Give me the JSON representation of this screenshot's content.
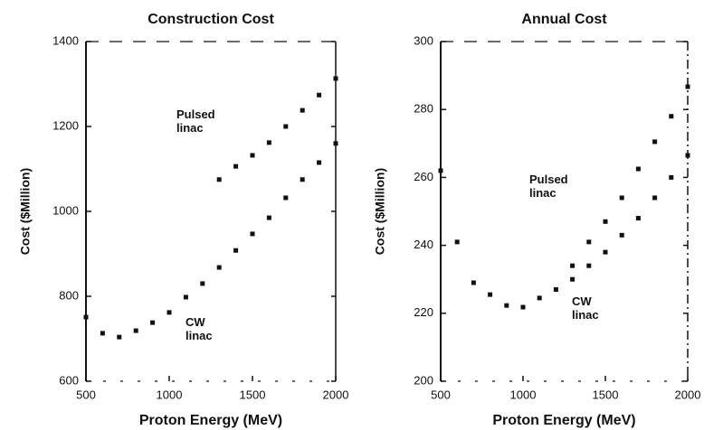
{
  "chart_data": [
    {
      "type": "scatter",
      "title": "Construction Cost",
      "xlabel": "Proton Energy (MeV)",
      "ylabel": "Cost ($Million)",
      "xlim": [
        500,
        2000
      ],
      "xticks": [
        500,
        1000,
        1500,
        2000
      ],
      "ylim": [
        600,
        1400
      ],
      "yticks": [
        600,
        800,
        1000,
        1200,
        1400
      ],
      "series": [
        {
          "name": "Pulsed linac",
          "color": "#111111",
          "x": [
            1300,
            1400,
            1500,
            1600,
            1700,
            1800,
            1900,
            2000
          ],
          "values": [
            1075,
            1106,
            1132,
            1162,
            1200,
            1238,
            1274,
            1313
          ]
        },
        {
          "name": "CW linac",
          "color": "#111111",
          "x": [
            500,
            600,
            700,
            800,
            900,
            1000,
            1100,
            1200,
            1300,
            1400,
            1500,
            1600,
            1700,
            1800,
            1900,
            2000
          ],
          "values": [
            751,
            713,
            704,
            719,
            738,
            762,
            798,
            830,
            868,
            908,
            947,
            985,
            1032,
            1075,
            1115,
            1160
          ]
        }
      ]
    },
    {
      "type": "scatter",
      "title": "Annual Cost",
      "xlabel": "Proton Energy (MeV)",
      "ylabel": "Cost ($Million)",
      "xlim": [
        500,
        2000
      ],
      "xticks": [
        500,
        1000,
        1500,
        2000
      ],
      "ylim": [
        200,
        300
      ],
      "yticks": [
        200,
        220,
        240,
        260,
        280,
        300
      ],
      "series": [
        {
          "name": "Pulsed linac",
          "color": "#111111",
          "x": [
            1300,
            1400,
            1500,
            1600,
            1700,
            1800,
            1900,
            2000
          ],
          "values": [
            234,
            241,
            247,
            254,
            262.5,
            270.5,
            278,
            286.7
          ]
        },
        {
          "name": "CW linac",
          "color": "#111111",
          "x": [
            500,
            600,
            700,
            800,
            900,
            1000,
            1100,
            1200,
            1300,
            1400,
            1500,
            1600,
            1700,
            1800,
            1900,
            2000
          ],
          "values": [
            262,
            241,
            229,
            225.5,
            222.3,
            221.8,
            224.5,
            227,
            230,
            234,
            238,
            243,
            248,
            254,
            260,
            266.5
          ]
        }
      ]
    }
  ]
}
